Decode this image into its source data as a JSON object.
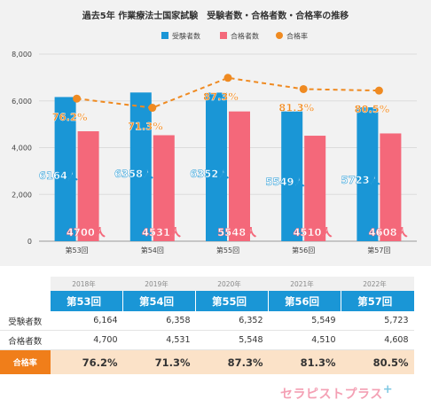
{
  "chart_data": {
    "type": "bar",
    "title": "過去5年 作業療法士国家試験　受験者数・合格者数・合格率の推移",
    "categories": [
      "第53回",
      "第54回",
      "第55回",
      "第56回",
      "第57回"
    ],
    "series": [
      {
        "name": "受験者数",
        "type": "bar",
        "color": "#1a96d6",
        "values": [
          6164,
          6358,
          6352,
          5549,
          5723
        ],
        "labels": [
          "6164人",
          "6358人",
          "6352人",
          "5549人",
          "5723人"
        ]
      },
      {
        "name": "合格者数",
        "type": "bar",
        "color": "#f4687a",
        "values": [
          4700,
          4531,
          5548,
          4510,
          4608
        ],
        "labels": [
          "4700人",
          "4531人",
          "5548人",
          "4510人",
          "4608人"
        ]
      },
      {
        "name": "合格率",
        "type": "line",
        "style": "dashed",
        "color": "#ef8a21",
        "values": [
          76.2,
          71.3,
          87.3,
          81.3,
          80.5
        ],
        "labels": [
          "76.2%",
          "71.3%",
          "87.3%",
          "81.3%",
          "80.5%"
        ]
      }
    ],
    "ylim": [
      0,
      8000
    ],
    "yticks": [
      "0",
      "2,000",
      "4,000",
      "6,000",
      "8,000"
    ],
    "grid": true,
    "legend": "top-center"
  },
  "table": {
    "years": [
      "2018年",
      "2019年",
      "2020年",
      "2021年",
      "2022年"
    ],
    "sessions": [
      "第53回",
      "第54回",
      "第55回",
      "第56回",
      "第57回"
    ],
    "applicants_label": "受験者数",
    "applicants": [
      "6,164",
      "6,358",
      "6,352",
      "5,549",
      "5,723"
    ],
    "passers_label": "合格者数",
    "passers": [
      "4,700",
      "4,531",
      "5,548",
      "4,510",
      "4,608"
    ],
    "rate_label": "合格率",
    "rates": [
      "76.2%",
      "71.3%",
      "87.3%",
      "81.3%",
      "80.5%"
    ]
  },
  "brand": {
    "name": "セラピストプラス",
    "plus_mark": "+",
    "color": "#f4a0b4"
  }
}
